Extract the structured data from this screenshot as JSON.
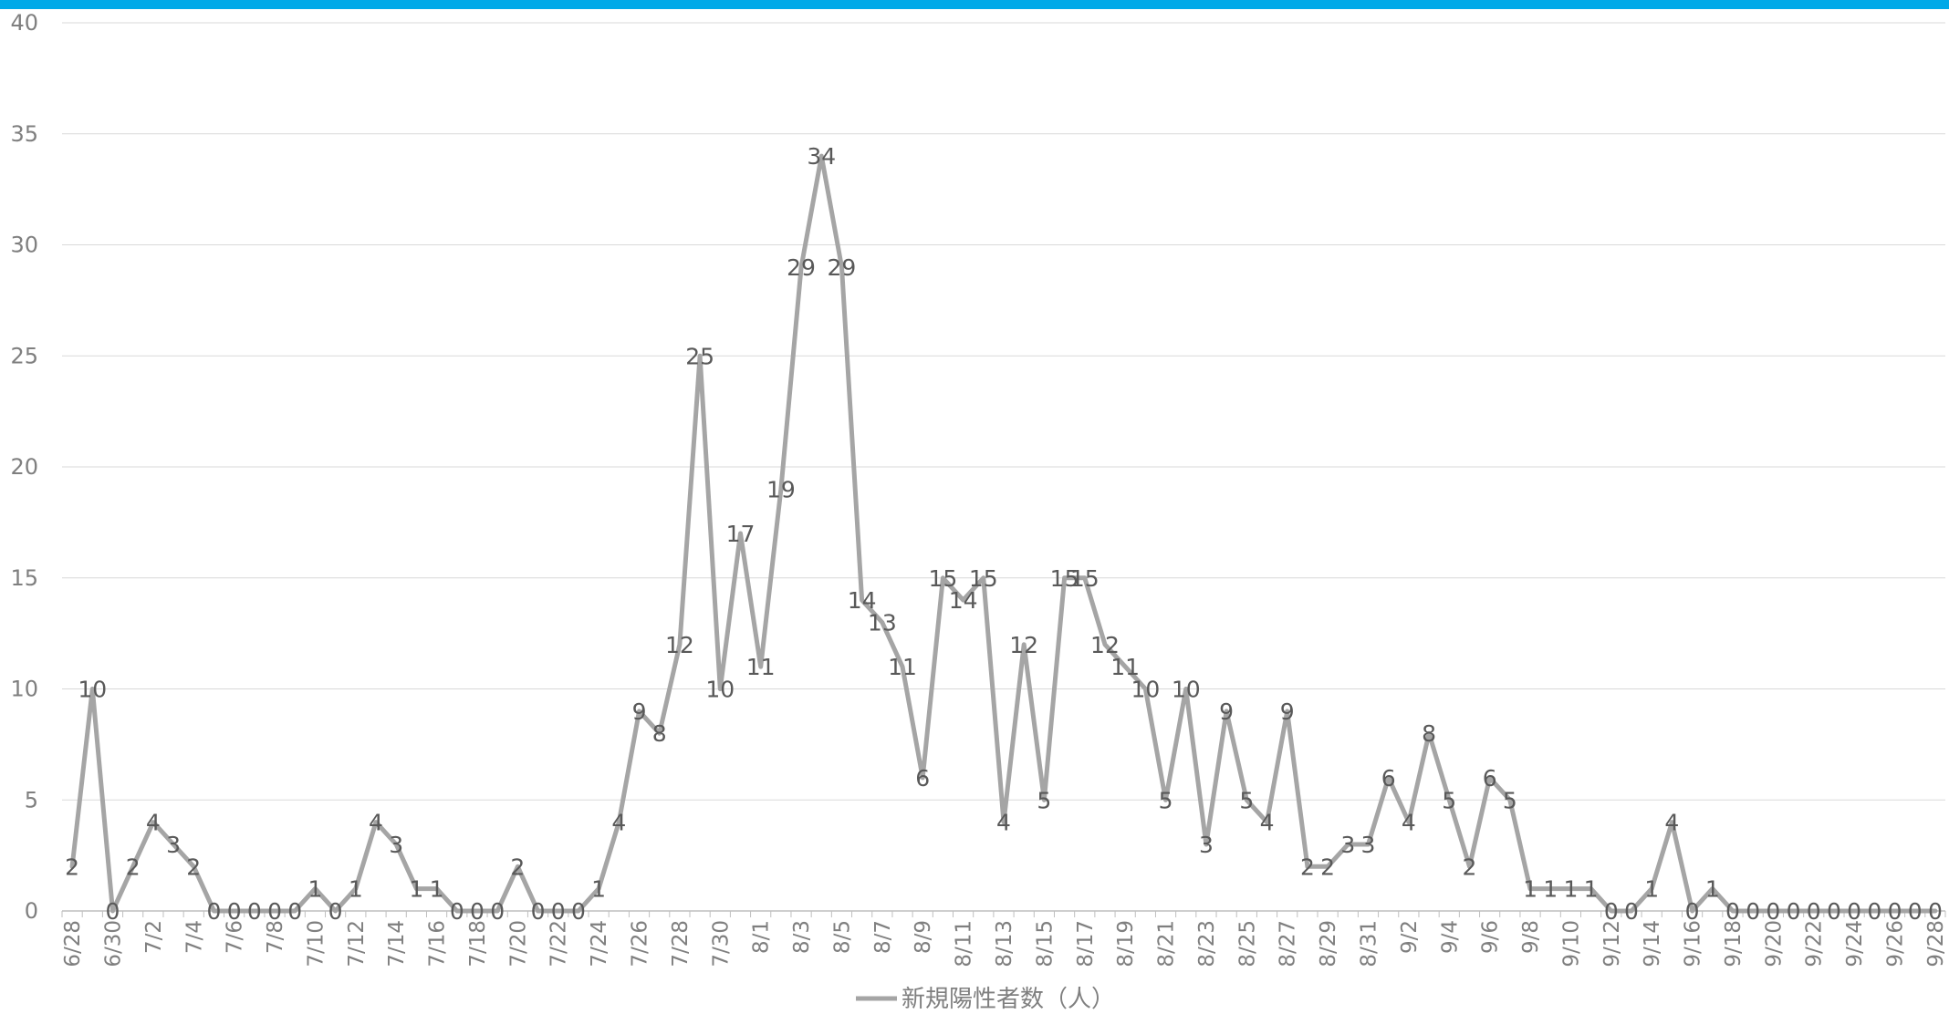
{
  "header": {
    "accent_color": "#00a9e8"
  },
  "chart_data": {
    "type": "line",
    "title": "",
    "xlabel": "",
    "ylabel": "",
    "ylim": [
      0,
      40
    ],
    "yticks": [
      0,
      5,
      10,
      15,
      20,
      25,
      30,
      35,
      40
    ],
    "grid": true,
    "legend_position": "bottom",
    "line_color": "#a5a5a5",
    "x": [
      "6/28",
      "6/29",
      "6/30",
      "7/1",
      "7/2",
      "7/3",
      "7/4",
      "7/5",
      "7/6",
      "7/7",
      "7/8",
      "7/9",
      "7/10",
      "7/11",
      "7/12",
      "7/13",
      "7/14",
      "7/15",
      "7/16",
      "7/17",
      "7/18",
      "7/19",
      "7/20",
      "7/21",
      "7/22",
      "7/23",
      "7/24",
      "7/25",
      "7/26",
      "7/27",
      "7/28",
      "7/29",
      "7/30",
      "7/31",
      "8/1",
      "8/2",
      "8/3",
      "8/4",
      "8/5",
      "8/6",
      "8/7",
      "8/8",
      "8/9",
      "8/10",
      "8/11",
      "8/12",
      "8/13",
      "8/14",
      "8/15",
      "8/16",
      "8/17",
      "8/18",
      "8/19",
      "8/20",
      "8/21",
      "8/22",
      "8/23",
      "8/24",
      "8/25",
      "8/26",
      "8/27",
      "8/28",
      "8/29",
      "8/30",
      "8/31",
      "9/1",
      "9/2",
      "9/3",
      "9/4",
      "9/5",
      "9/6",
      "9/7",
      "9/8",
      "9/9",
      "9/10",
      "9/11",
      "9/12",
      "9/13",
      "9/14",
      "9/15",
      "9/16",
      "9/17",
      "9/18",
      "9/19",
      "9/20",
      "9/21",
      "9/22",
      "9/23",
      "9/24",
      "9/25",
      "9/26",
      "9/27",
      "9/28"
    ],
    "xtick_labels": [
      "6/28",
      "6/30",
      "7/2",
      "7/4",
      "7/6",
      "7/8",
      "7/10",
      "7/12",
      "7/14",
      "7/16",
      "7/18",
      "7/20",
      "7/22",
      "7/24",
      "7/26",
      "7/28",
      "7/30",
      "8/1",
      "8/3",
      "8/5",
      "8/7",
      "8/9",
      "8/11",
      "8/13",
      "8/15",
      "8/17",
      "8/19",
      "8/21",
      "8/23",
      "8/25",
      "8/27",
      "8/29",
      "8/31",
      "9/2",
      "9/4",
      "9/6",
      "9/8",
      "9/10",
      "9/12",
      "9/14",
      "9/16",
      "9/18",
      "9/20",
      "9/22",
      "9/24",
      "9/26",
      "9/28"
    ],
    "series": [
      {
        "name": "新規陽性者数（人）",
        "values": [
          2,
          10,
          0,
          2,
          4,
          3,
          2,
          0,
          0,
          0,
          0,
          0,
          1,
          0,
          1,
          4,
          3,
          1,
          1,
          0,
          0,
          0,
          2,
          0,
          0,
          0,
          1,
          4,
          9,
          8,
          12,
          25,
          10,
          17,
          11,
          19,
          29,
          34,
          29,
          14,
          13,
          11,
          6,
          15,
          14,
          15,
          4,
          12,
          5,
          15,
          15,
          12,
          11,
          10,
          5,
          10,
          3,
          9,
          5,
          4,
          9,
          2,
          2,
          3,
          3,
          6,
          4,
          8,
          5,
          2,
          6,
          5,
          1,
          1,
          1,
          1,
          0,
          0,
          1,
          4,
          0,
          1,
          0,
          0,
          0,
          0,
          0,
          0,
          0,
          0,
          0,
          0,
          0
        ]
      }
    ]
  }
}
